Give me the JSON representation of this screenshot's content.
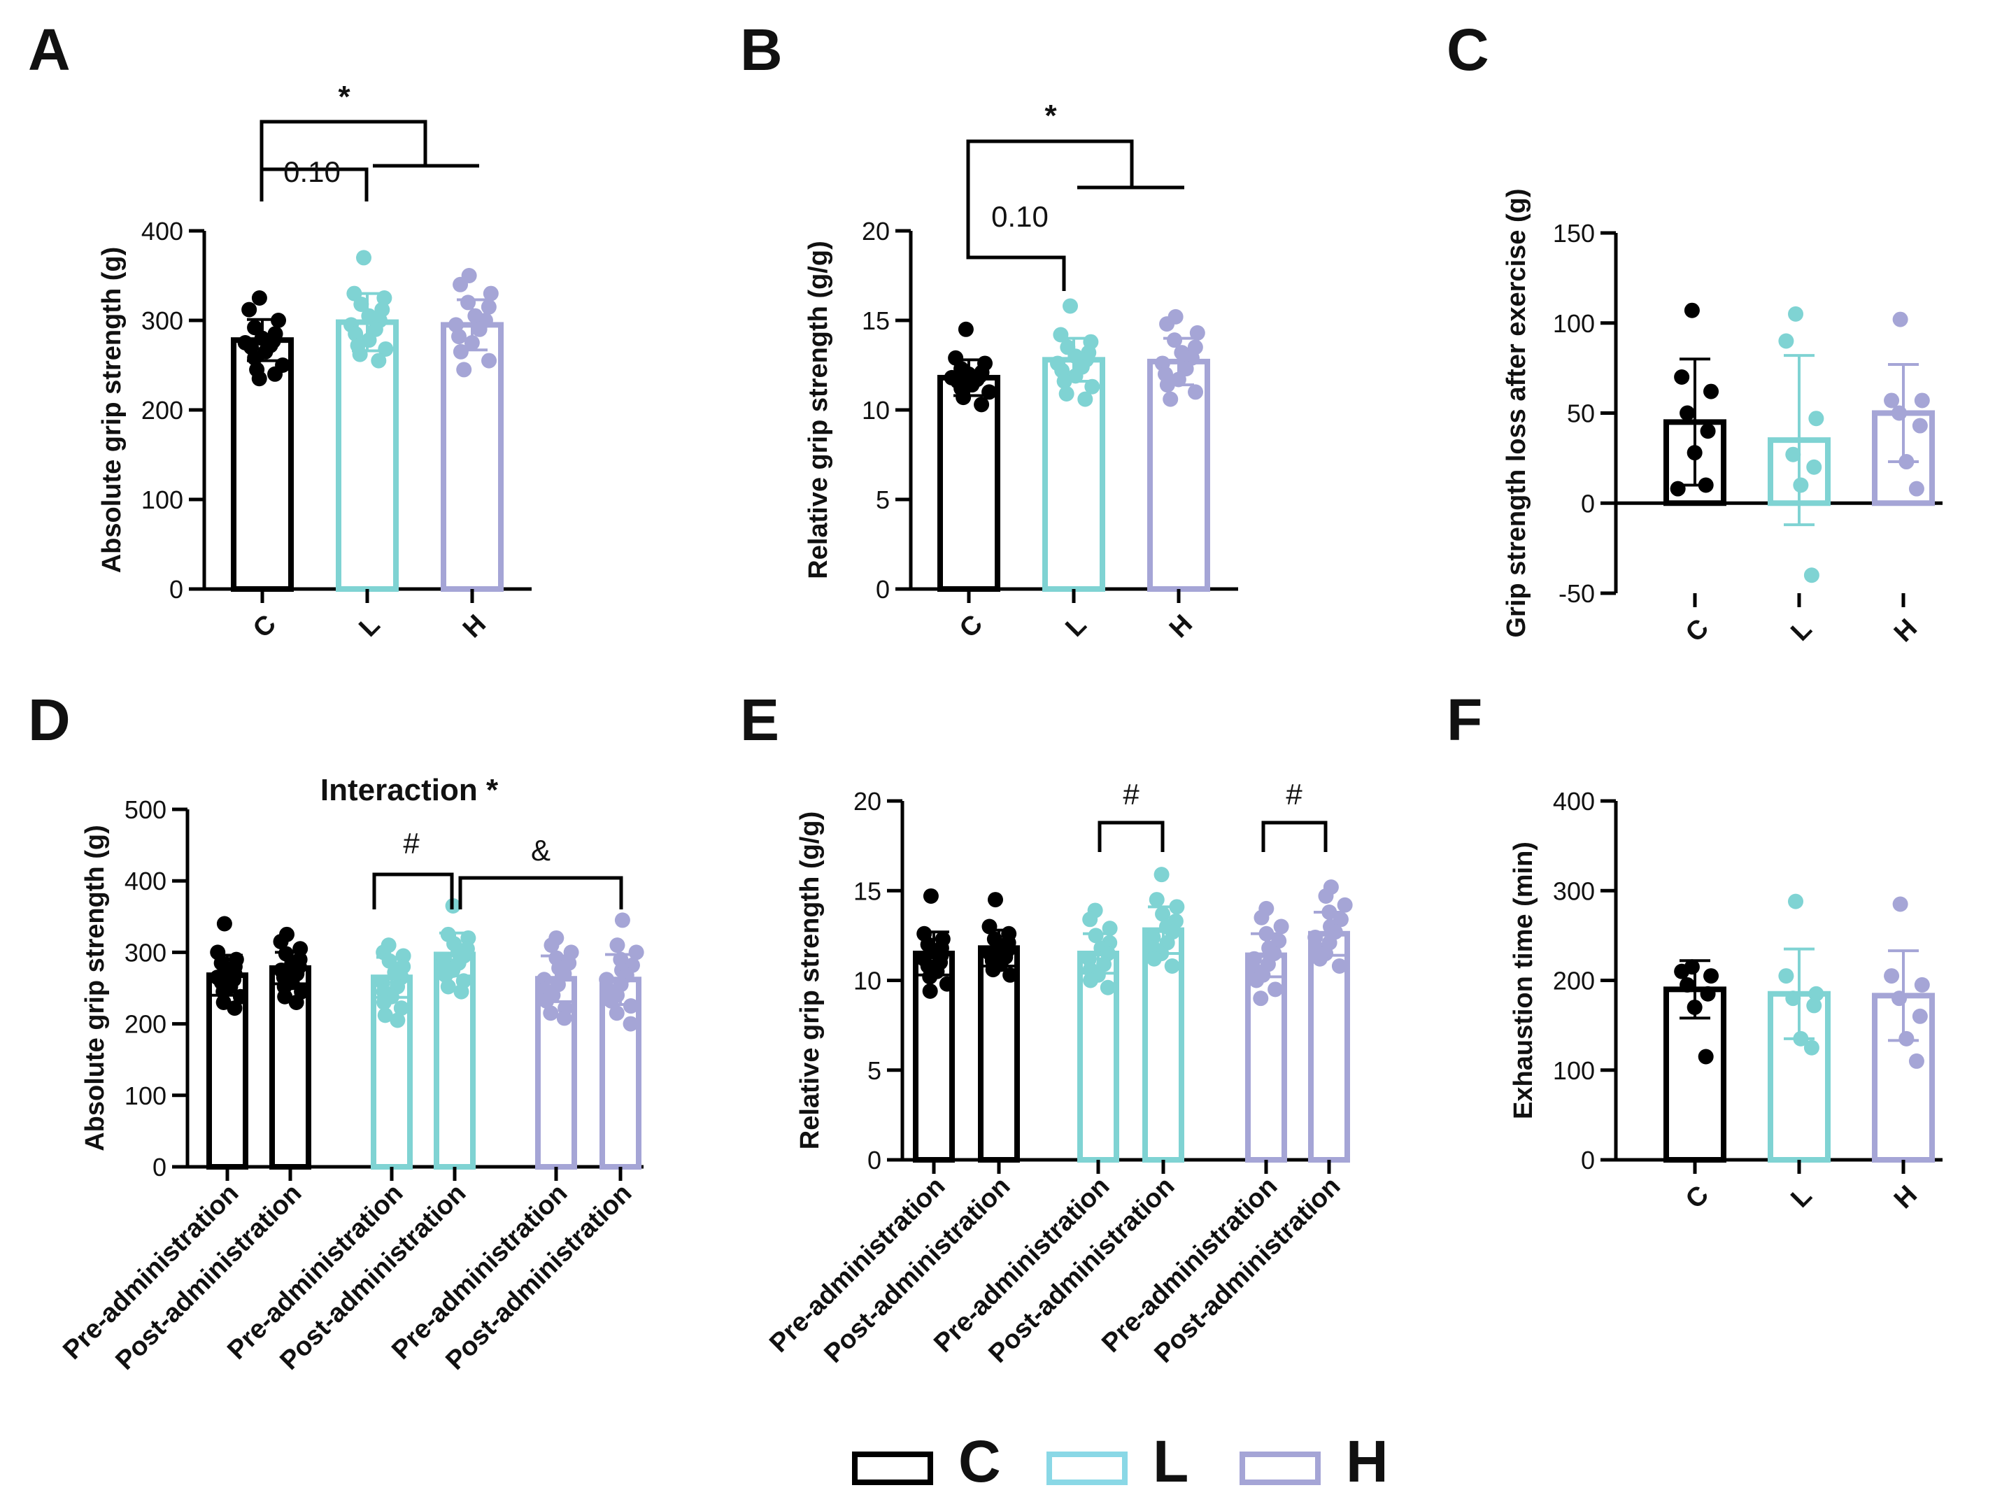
{
  "colors": {
    "C": "#000000",
    "L": "#7fd3d3",
    "H": "#a5a5d6",
    "legend_L": "#8ad8e6"
  },
  "legend": {
    "items": [
      {
        "label": "C",
        "color": "#000000"
      },
      {
        "label": "L",
        "color": "#8ad8e6"
      },
      {
        "label": "H",
        "color": "#a5a5d6"
      }
    ]
  },
  "chart_data": [
    {
      "panel": "A",
      "type": "bar",
      "ylabel": "Absolute grip strength (g)",
      "ylim": [
        0,
        400
      ],
      "yticks": [
        0,
        100,
        200,
        300,
        400
      ],
      "categories": [
        "C",
        "L",
        "H"
      ],
      "values": [
        278,
        298,
        295
      ],
      "errors": [
        23,
        32,
        28
      ],
      "points": [
        [
          325,
          312,
          300,
          292,
          285,
          280,
          277,
          275,
          272,
          270,
          265,
          258,
          250,
          245,
          240,
          235
        ],
        [
          370,
          330,
          325,
          318,
          312,
          305,
          300,
          295,
          290,
          285,
          278,
          272,
          268,
          262,
          255
        ],
        [
          350,
          340,
          330,
          320,
          315,
          305,
          300,
          295,
          290,
          282,
          275,
          265,
          255,
          245
        ]
      ],
      "annotations": [
        {
          "text": "*"
        },
        {
          "text": "0.10"
        }
      ]
    },
    {
      "panel": "B",
      "type": "bar",
      "ylabel": "Relative grip strength (g/g)",
      "ylim": [
        0,
        20
      ],
      "yticks": [
        0,
        5,
        10,
        15,
        20
      ],
      "categories": [
        "C",
        "L",
        "H"
      ],
      "values": [
        11.8,
        12.8,
        12.7
      ],
      "errors": [
        1.0,
        1.2,
        1.3
      ],
      "points": [
        [
          14.5,
          12.9,
          12.6,
          12.3,
          12.1,
          12.0,
          11.9,
          11.8,
          11.7,
          11.6,
          11.4,
          11.2,
          11.0,
          10.7,
          10.3
        ],
        [
          15.8,
          14.2,
          13.8,
          13.5,
          13.2,
          13.0,
          12.8,
          12.6,
          12.4,
          12.2,
          11.9,
          11.6,
          11.3,
          10.9,
          10.6
        ],
        [
          15.2,
          14.8,
          14.3,
          13.9,
          13.5,
          13.2,
          12.9,
          12.6,
          12.3,
          12.0,
          11.7,
          11.4,
          11.0,
          10.6
        ]
      ],
      "annotations": [
        {
          "text": "*"
        },
        {
          "text": "0.10"
        }
      ]
    },
    {
      "panel": "C",
      "type": "bar",
      "ylabel": "Grip strength loss after exercise (g)",
      "ylim": [
        -50,
        150
      ],
      "yticks": [
        -50,
        0,
        50,
        100,
        150
      ],
      "categories": [
        "C",
        "L",
        "H"
      ],
      "values": [
        45,
        35,
        50
      ],
      "errors": [
        35,
        47,
        27
      ],
      "points": [
        [
          107,
          70,
          62,
          50,
          40,
          28,
          10,
          8
        ],
        [
          105,
          90,
          47,
          27,
          20,
          10,
          -40
        ],
        [
          102,
          57,
          57,
          50,
          43,
          23,
          8
        ]
      ]
    },
    {
      "panel": "D",
      "type": "bar",
      "ylabel": "Absolute grip strength (g)",
      "ylim": [
        0,
        500
      ],
      "yticks": [
        0,
        100,
        200,
        300,
        400,
        500
      ],
      "groups": [
        "C",
        "L",
        "H"
      ],
      "categories": [
        "Pre-administration",
        "Post-administration",
        "Pre-administration",
        "Post-administration",
        "Pre-administration",
        "Post-administration"
      ],
      "values": [
        268,
        278,
        265,
        297,
        263,
        262
      ],
      "errors": [
        28,
        22,
        28,
        30,
        32,
        35
      ],
      "points": [
        [
          340,
          300,
          290,
          285,
          280,
          275,
          270,
          265,
          262,
          258,
          252,
          245,
          238,
          230,
          222
        ],
        [
          325,
          315,
          305,
          298,
          290,
          285,
          280,
          275,
          270,
          265,
          258,
          252,
          245,
          238,
          230
        ],
        [
          310,
          300,
          295,
          288,
          280,
          272,
          265,
          258,
          252,
          245,
          238,
          230,
          222,
          212,
          205
        ],
        [
          365,
          325,
          320,
          312,
          305,
          300,
          295,
          290,
          285,
          280,
          275,
          268,
          260,
          252,
          245
        ],
        [
          320,
          310,
          300,
          292,
          285,
          278,
          270,
          262,
          255,
          248,
          240,
          232,
          222,
          215,
          208
        ],
        [
          345,
          310,
          300,
          290,
          282,
          275,
          268,
          262,
          255,
          248,
          240,
          232,
          225,
          215,
          200
        ]
      ],
      "title": "Interaction *",
      "annotations": [
        {
          "text": "#"
        },
        {
          "text": "&"
        }
      ]
    },
    {
      "panel": "E",
      "type": "bar",
      "ylabel": "Relative grip strength (g/g)",
      "ylim": [
        0,
        20
      ],
      "yticks": [
        0,
        5,
        10,
        15,
        20
      ],
      "groups": [
        "C",
        "L",
        "H"
      ],
      "categories": [
        "Pre-administration",
        "Post-administration",
        "Pre-administration",
        "Post-administration",
        "Pre-administration",
        "Post-administration"
      ],
      "values": [
        11.5,
        11.8,
        11.5,
        12.8,
        11.4,
        12.6
      ],
      "errors": [
        1.2,
        1.0,
        1.1,
        1.3,
        1.2,
        1.2
      ],
      "points": [
        [
          14.7,
          12.6,
          12.3,
          12.0,
          11.8,
          11.6,
          11.4,
          11.2,
          11.0,
          10.8,
          10.5,
          10.2,
          9.8,
          9.4
        ],
        [
          14.5,
          13.0,
          12.6,
          12.3,
          12.1,
          11.9,
          11.7,
          11.5,
          11.3,
          11.1,
          10.9,
          10.6,
          10.3
        ],
        [
          13.9,
          13.4,
          12.9,
          12.5,
          12.1,
          11.8,
          11.5,
          11.2,
          10.9,
          10.6,
          10.3,
          10.0,
          9.6
        ],
        [
          15.9,
          14.5,
          14.1,
          13.7,
          13.3,
          13.0,
          12.7,
          12.4,
          12.1,
          11.8,
          11.5,
          11.2,
          10.8
        ],
        [
          14.0,
          13.5,
          13.0,
          12.6,
          12.2,
          11.8,
          11.5,
          11.2,
          10.9,
          10.6,
          10.3,
          10.0,
          9.5,
          9.0
        ],
        [
          15.2,
          14.7,
          14.2,
          13.8,
          13.4,
          13.0,
          12.7,
          12.4,
          12.1,
          11.8,
          11.5,
          11.2,
          10.8
        ]
      ],
      "annotations": [
        {
          "text": "#"
        },
        {
          "text": "#"
        }
      ]
    },
    {
      "panel": "F",
      "type": "bar",
      "ylabel": "Exhaustion time (min)",
      "ylim": [
        0,
        400
      ],
      "yticks": [
        0,
        100,
        200,
        300,
        400
      ],
      "categories": [
        "C",
        "L",
        "H"
      ],
      "values": [
        190,
        185,
        183
      ],
      "errors": [
        32,
        50,
        50
      ],
      "points": [
        [
          215,
          210,
          205,
          195,
          185,
          170,
          115
        ],
        [
          288,
          205,
          185,
          180,
          172,
          135,
          125
        ],
        [
          285,
          205,
          195,
          180,
          160,
          135,
          110
        ]
      ]
    }
  ]
}
